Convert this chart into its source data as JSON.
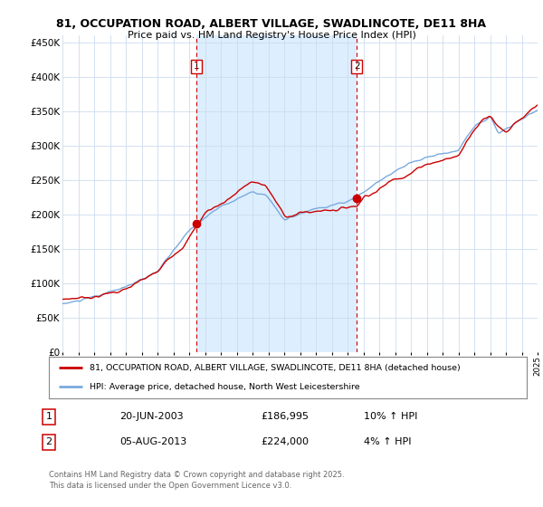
{
  "title_line1": "81, OCCUPATION ROAD, ALBERT VILLAGE, SWADLINCOTE, DE11 8HA",
  "title_line2": "Price paid vs. HM Land Registry's House Price Index (HPI)",
  "legend_line1": "81, OCCUPATION ROAD, ALBERT VILLAGE, SWADLINCOTE, DE11 8HA (detached house)",
  "legend_line2": "HPI: Average price, detached house, North West Leicestershire",
  "footnote": "Contains HM Land Registry data © Crown copyright and database right 2025.\nThis data is licensed under the Open Government Licence v3.0.",
  "purchase1_date": "20-JUN-2003",
  "purchase1_price": "£186,995",
  "purchase1_hpi": "10% ↑ HPI",
  "purchase2_date": "05-AUG-2013",
  "purchase2_price": "£224,000",
  "purchase2_hpi": "4% ↑ HPI",
  "red_color": "#cc0000",
  "blue_color": "#7aaadd",
  "bg_color": "#ffffff",
  "shaded_color": "#ddeeff",
  "grid_color": "#ccddee",
  "ylim": [
    0,
    460000
  ],
  "yticks": [
    0,
    50000,
    100000,
    150000,
    200000,
    250000,
    300000,
    350000,
    400000,
    450000
  ],
  "year_start": 1995,
  "year_end": 2025,
  "purchase1_year": 2003.47,
  "purchase2_year": 2013.59,
  "purchase1_value": 186995,
  "purchase2_value": 224000
}
